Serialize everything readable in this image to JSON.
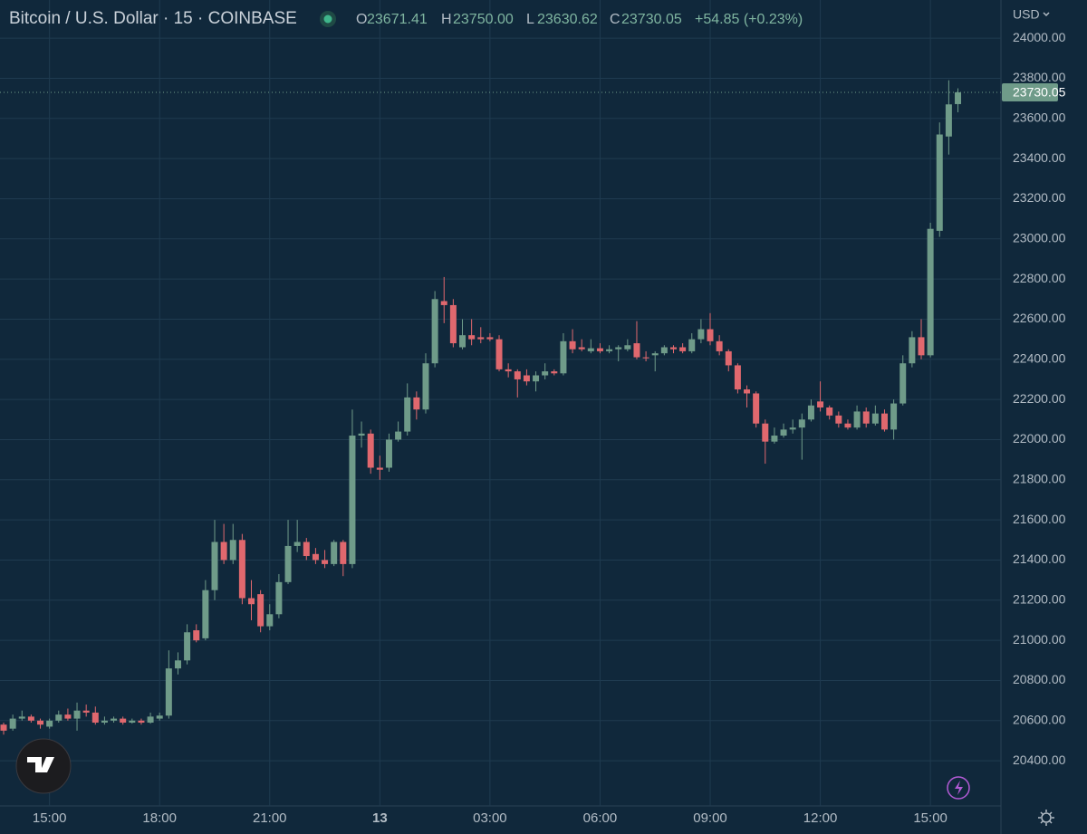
{
  "header": {
    "title": "Bitcoin / U.S. Dollar · 15 · COINBASE",
    "o_label": "O",
    "o": "23671.41",
    "h_label": "H",
    "h": "23750.00",
    "l_label": "L",
    "l": "23630.62",
    "c_label": "C",
    "c": "23730.05",
    "change": "+54.85 (+0.23%)",
    "currency": "USD"
  },
  "chart_data": {
    "type": "candlestick",
    "up_color": "#6f9b89",
    "down_color": "#e0686e",
    "grid": true,
    "categories": [
      null,
      null,
      null,
      null,
      null,
      "15:00",
      null,
      null,
      null,
      null,
      null,
      null,
      null,
      null,
      null,
      null,
      null,
      "18:00",
      null,
      null,
      null,
      null,
      null,
      null,
      null,
      null,
      null,
      null,
      null,
      "21:00",
      null,
      null,
      null,
      null,
      null,
      null,
      null,
      null,
      null,
      null,
      null,
      "13",
      null,
      null,
      null,
      null,
      null,
      null,
      null,
      null,
      null,
      null,
      null,
      "03:00",
      null,
      null,
      null,
      null,
      null,
      null,
      null,
      null,
      null,
      null,
      null,
      "06:00",
      null,
      null,
      null,
      null,
      null,
      null,
      null,
      null,
      null,
      null,
      null,
      "09:00",
      null,
      null,
      null,
      null,
      null,
      null,
      null,
      null,
      null,
      null,
      null,
      "12:00",
      null,
      null,
      null,
      null,
      null,
      null,
      null,
      null,
      null,
      null,
      null,
      "15:00",
      null,
      null,
      null
    ],
    "open": [
      20580,
      20560,
      20610,
      20620,
      20600,
      20570,
      20600,
      20630,
      20610,
      20650,
      20640,
      20590,
      20600,
      20610,
      20590,
      20600,
      20590,
      20610,
      20625,
      20860,
      20900,
      21050,
      21010,
      21250,
      21490,
      21400,
      21500,
      21210,
      21230,
      21070,
      21130,
      21290,
      21470,
      21490,
      21430,
      21400,
      21380,
      21490,
      21380,
      22020,
      22030,
      21860,
      21860,
      22000,
      22040,
      22210,
      22150,
      22380,
      22690,
      22670,
      22460,
      22520,
      22510,
      22510,
      22500,
      22350,
      22340,
      22320,
      22290,
      22320,
      22340,
      22330,
      22490,
      22460,
      22440,
      22455,
      22440,
      22450,
      22450,
      22480,
      22410,
      22420,
      22430,
      22460,
      22460,
      22440,
      22500,
      22550,
      22490,
      22440,
      22370,
      22250,
      22230,
      22080,
      21990,
      22020,
      22050,
      22060,
      22100,
      22190,
      22160,
      22120,
      22080,
      22060,
      22140,
      22080,
      22130,
      22050,
      22180,
      22380,
      22510,
      22420,
      23040,
      23510,
      23671.41
    ],
    "high": [
      20590,
      20630,
      20650,
      20630,
      20610,
      20610,
      20650,
      20660,
      20690,
      20680,
      20670,
      20620,
      20620,
      20620,
      20610,
      20610,
      20640,
      20640,
      20950,
      20940,
      21080,
      21080,
      21300,
      21600,
      21580,
      21580,
      21530,
      21300,
      21250,
      21180,
      21330,
      21600,
      21600,
      21510,
      21460,
      21450,
      21500,
      21500,
      22150,
      22090,
      22050,
      21920,
      22030,
      22090,
      22280,
      22240,
      22430,
      22740,
      22810,
      22700,
      22600,
      22600,
      22560,
      22530,
      22520,
      22380,
      22350,
      22350,
      22340,
      22380,
      22350,
      22530,
      22550,
      22500,
      22500,
      22480,
      22470,
      22470,
      22500,
      22590,
      22440,
      22440,
      22470,
      22470,
      22480,
      22530,
      22600,
      22630,
      22520,
      22450,
      22380,
      22270,
      22240,
      22100,
      22060,
      22080,
      22100,
      22130,
      22200,
      22290,
      22170,
      22140,
      22100,
      22170,
      22160,
      22170,
      22150,
      22200,
      22420,
      22540,
      22600,
      23080,
      23580,
      23790,
      23750
    ],
    "low": [
      20530,
      20550,
      20600,
      20590,
      20560,
      20560,
      20590,
      20600,
      20550,
      20620,
      20580,
      20580,
      20590,
      20580,
      20585,
      20580,
      20585,
      20600,
      20610,
      20830,
      20880,
      20990,
      21000,
      21200,
      21380,
      21380,
      21180,
      21100,
      21040,
      21050,
      21110,
      21280,
      21440,
      21400,
      21380,
      21360,
      21370,
      21320,
      21360,
      21960,
      21830,
      21800,
      21840,
      21990,
      22020,
      22100,
      22130,
      22360,
      22580,
      22460,
      22450,
      22470,
      22480,
      22490,
      22340,
      22310,
      22210,
      22270,
      22240,
      22300,
      22320,
      22320,
      22430,
      22440,
      22430,
      22430,
      22430,
      22390,
      22440,
      22400,
      22390,
      22340,
      22420,
      22430,
      22430,
      22430,
      22480,
      22470,
      22420,
      22340,
      22230,
      22160,
      22060,
      21880,
      21980,
      22010,
      22030,
      21900,
      22090,
      22140,
      22100,
      22060,
      22050,
      22050,
      22060,
      22070,
      22040,
      22000,
      22170,
      22360,
      22400,
      22410,
      23010,
      23420,
      23630.62
    ],
    "close": [
      20550,
      20610,
      20620,
      20600,
      20580,
      20600,
      20630,
      20610,
      20650,
      20640,
      20590,
      20600,
      20610,
      20590,
      20600,
      20590,
      20620,
      20625,
      20860,
      20900,
      21040,
      21000,
      21250,
      21490,
      21400,
      21500,
      21210,
      21180,
      21070,
      21130,
      21290,
      21470,
      21490,
      21420,
      21400,
      21380,
      21490,
      21380,
      22020,
      22030,
      21860,
      21850,
      22000,
      22040,
      22210,
      22150,
      22380,
      22700,
      22670,
      22480,
      22520,
      22500,
      22500,
      22500,
      22350,
      22340,
      22300,
      22290,
      22320,
      22340,
      22330,
      22490,
      22450,
      22450,
      22455,
      22440,
      22450,
      22460,
      22470,
      22410,
      22405,
      22430,
      22460,
      22450,
      22440,
      22500,
      22550,
      22490,
      22440,
      22370,
      22250,
      22230,
      22080,
      21990,
      22020,
      22050,
      22060,
      22100,
      22170,
      22160,
      22120,
      22080,
      22060,
      22140,
      22080,
      22130,
      22050,
      22180,
      22380,
      22510,
      22420,
      23050,
      23520,
      23670,
      23730.05
    ],
    "ylim": [
      20175,
      24190
    ],
    "yticks": [
      {
        "value": 20400,
        "label": "20400.00"
      },
      {
        "value": 20600,
        "label": "20600.00"
      },
      {
        "value": 20800,
        "label": "20800.00"
      },
      {
        "value": 21000,
        "label": "21000.00"
      },
      {
        "value": 21200,
        "label": "21200.00"
      },
      {
        "value": 21400,
        "label": "21400.00"
      },
      {
        "value": 21600,
        "label": "21600.00"
      },
      {
        "value": 21800,
        "label": "21800.00"
      },
      {
        "value": 22000,
        "label": "22000.00"
      },
      {
        "value": 22200,
        "label": "22200.00"
      },
      {
        "value": 22400,
        "label": "22400.00"
      },
      {
        "value": 22600,
        "label": "22600.00"
      },
      {
        "value": 22800,
        "label": "22800.00"
      },
      {
        "value": 23000,
        "label": "23000.00"
      },
      {
        "value": 23200,
        "label": "23200.00"
      },
      {
        "value": 23400,
        "label": "23400.00"
      },
      {
        "value": 23600,
        "label": "23600.00"
      },
      {
        "value": 23800,
        "label": "23800.00"
      },
      {
        "value": 24000,
        "label": "24000.00"
      }
    ]
  }
}
